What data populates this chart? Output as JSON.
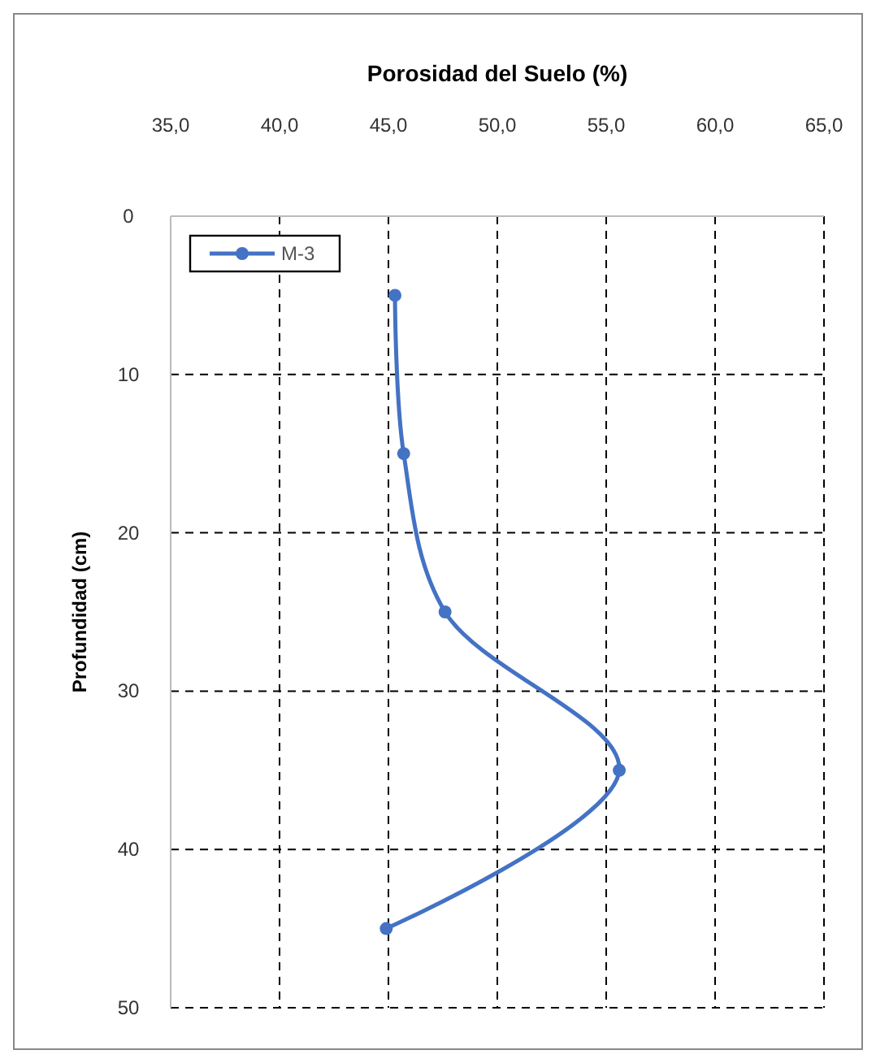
{
  "chart_data": {
    "type": "line",
    "title": "Porosidad del Suelo (%)",
    "ylabel": "Profundidad  (cm)",
    "xlim": [
      35,
      65
    ],
    "xticks": [
      {
        "value": 35,
        "label": "35,0"
      },
      {
        "value": 40,
        "label": "40,0"
      },
      {
        "value": 45,
        "label": "45,0"
      },
      {
        "value": 50,
        "label": "50,0"
      },
      {
        "value": 55,
        "label": "55,0"
      },
      {
        "value": 60,
        "label": "60,0"
      },
      {
        "value": 65,
        "label": "65,0"
      }
    ],
    "ylim": [
      50,
      0
    ],
    "yticks": [
      0,
      10,
      20,
      30,
      40,
      50
    ],
    "series": [
      {
        "name": "M-3",
        "color": "#4472c4",
        "x": [
          45.3,
          45.7,
          47.6,
          55.6,
          44.9
        ],
        "values": [
          5,
          15,
          25,
          35,
          45
        ]
      }
    ],
    "grid": true,
    "legend": "top left",
    "marker": "circle",
    "line_style": "solid"
  }
}
